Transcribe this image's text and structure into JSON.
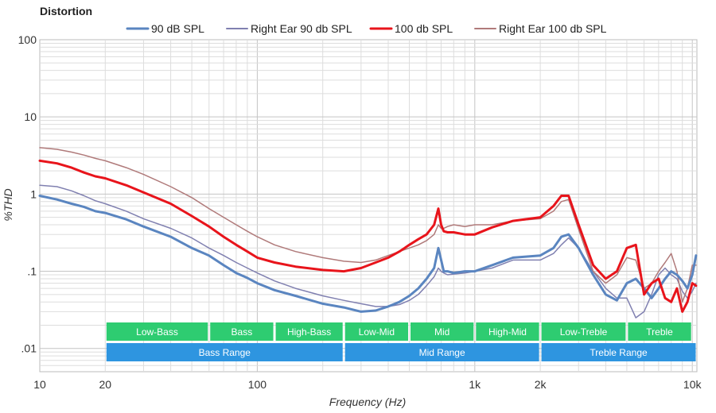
{
  "chart_data": {
    "type": "line",
    "title": "Distortion",
    "xlabel": "Frequency (Hz)",
    "ylabel": "%THD",
    "xscale": "log",
    "yscale": "log",
    "xlim": [
      10,
      10500
    ],
    "ylim": [
      0.005,
      100
    ],
    "grid": true,
    "legend_position": "top",
    "x_ticks": [
      {
        "value": 10,
        "label": "10"
      },
      {
        "value": 20,
        "label": "20"
      },
      {
        "value": 100,
        "label": "100"
      },
      {
        "value": 1000,
        "label": "1k"
      },
      {
        "value": 2000,
        "label": "2k"
      },
      {
        "value": 10000,
        "label": "10k"
      }
    ],
    "y_ticks": [
      {
        "value": 100,
        "label": "100"
      },
      {
        "value": 10,
        "label": "10"
      },
      {
        "value": 1,
        "label": "1"
      },
      {
        "value": 0.1,
        "label": ".1"
      },
      {
        "value": 0.01,
        "label": ".01"
      }
    ],
    "series": [
      {
        "name": "90 dB SPL",
        "color": "#5a85c0",
        "width": 3,
        "x": [
          10,
          12,
          14,
          16,
          18,
          20,
          25,
          30,
          40,
          50,
          60,
          70,
          80,
          90,
          100,
          120,
          150,
          200,
          250,
          300,
          350,
          400,
          450,
          500,
          550,
          600,
          650,
          680,
          700,
          720,
          750,
          800,
          900,
          1000,
          1200,
          1500,
          2000,
          2300,
          2500,
          2700,
          3000,
          3500,
          4000,
          4500,
          5000,
          5500,
          6000,
          6500,
          7000,
          7500,
          8000,
          8500,
          9000,
          9500,
          10000,
          10400
        ],
        "y": [
          0.95,
          0.85,
          0.75,
          0.68,
          0.6,
          0.57,
          0.47,
          0.38,
          0.28,
          0.2,
          0.16,
          0.12,
          0.095,
          0.082,
          0.07,
          0.057,
          0.048,
          0.038,
          0.034,
          0.03,
          0.031,
          0.035,
          0.04,
          0.048,
          0.06,
          0.08,
          0.11,
          0.2,
          0.14,
          0.1,
          0.1,
          0.095,
          0.1,
          0.1,
          0.12,
          0.15,
          0.16,
          0.2,
          0.28,
          0.3,
          0.2,
          0.09,
          0.05,
          0.042,
          0.07,
          0.08,
          0.06,
          0.045,
          0.06,
          0.08,
          0.1,
          0.09,
          0.075,
          0.06,
          0.09,
          0.16
        ]
      },
      {
        "name": "Right Ear 90 db SPL",
        "color": "#8080b0",
        "width": 1.5,
        "x": [
          10,
          12,
          14,
          16,
          18,
          20,
          25,
          30,
          40,
          50,
          60,
          70,
          80,
          90,
          100,
          120,
          150,
          200,
          250,
          300,
          350,
          400,
          450,
          500,
          550,
          600,
          650,
          680,
          700,
          720,
          750,
          800,
          900,
          1000,
          1200,
          1500,
          2000,
          2300,
          2500,
          2700,
          3000,
          3500,
          4000,
          4500,
          5000,
          5500,
          6000,
          6500,
          7000,
          7500,
          8000,
          8500,
          9000,
          9500,
          10000,
          10400
        ],
        "y": [
          1.3,
          1.25,
          1.1,
          0.95,
          0.82,
          0.75,
          0.6,
          0.48,
          0.36,
          0.27,
          0.2,
          0.16,
          0.13,
          0.11,
          0.095,
          0.075,
          0.06,
          0.048,
          0.042,
          0.038,
          0.035,
          0.035,
          0.037,
          0.042,
          0.05,
          0.065,
          0.085,
          0.11,
          0.1,
          0.095,
          0.09,
          0.092,
          0.095,
          0.1,
          0.11,
          0.14,
          0.14,
          0.17,
          0.22,
          0.27,
          0.2,
          0.1,
          0.06,
          0.045,
          0.045,
          0.025,
          0.03,
          0.05,
          0.09,
          0.11,
          0.09,
          0.08,
          0.055,
          0.045,
          0.055,
          0.07
        ]
      },
      {
        "name": "100 db SPL",
        "color": "#e8141b",
        "width": 3,
        "x": [
          10,
          12,
          14,
          16,
          18,
          20,
          25,
          30,
          40,
          50,
          60,
          70,
          80,
          90,
          100,
          120,
          150,
          200,
          250,
          300,
          350,
          400,
          450,
          500,
          550,
          600,
          650,
          680,
          700,
          720,
          750,
          800,
          900,
          1000,
          1200,
          1500,
          2000,
          2300,
          2500,
          2700,
          3000,
          3500,
          4000,
          4500,
          5000,
          5500,
          6000,
          6500,
          7000,
          7500,
          8000,
          8500,
          9000,
          9500,
          10000,
          10400
        ],
        "y": [
          2.7,
          2.5,
          2.2,
          1.9,
          1.7,
          1.6,
          1.3,
          1.05,
          0.75,
          0.52,
          0.38,
          0.28,
          0.22,
          0.18,
          0.15,
          0.13,
          0.115,
          0.104,
          0.1,
          0.11,
          0.13,
          0.15,
          0.18,
          0.22,
          0.26,
          0.3,
          0.4,
          0.65,
          0.4,
          0.33,
          0.32,
          0.32,
          0.3,
          0.3,
          0.37,
          0.45,
          0.5,
          0.7,
          0.95,
          0.95,
          0.4,
          0.12,
          0.08,
          0.1,
          0.2,
          0.22,
          0.05,
          0.07,
          0.08,
          0.045,
          0.04,
          0.06,
          0.03,
          0.04,
          0.07,
          0.065
        ]
      },
      {
        "name": "Right Ear 100 db SPL",
        "color": "#b07a7a",
        "width": 1.5,
        "x": [
          10,
          12,
          14,
          16,
          18,
          20,
          25,
          30,
          40,
          50,
          60,
          70,
          80,
          90,
          100,
          120,
          150,
          200,
          250,
          300,
          350,
          400,
          450,
          500,
          550,
          600,
          650,
          680,
          700,
          720,
          750,
          800,
          900,
          1000,
          1200,
          1500,
          2000,
          2300,
          2500,
          2700,
          3000,
          3500,
          4000,
          4500,
          5000,
          5500,
          6000,
          6500,
          7000,
          7500,
          8000,
          8500,
          9000,
          9500,
          10000,
          10400
        ],
        "y": [
          4.0,
          3.8,
          3.5,
          3.2,
          2.9,
          2.7,
          2.2,
          1.8,
          1.25,
          0.9,
          0.65,
          0.5,
          0.4,
          0.33,
          0.28,
          0.22,
          0.18,
          0.15,
          0.135,
          0.13,
          0.14,
          0.16,
          0.18,
          0.2,
          0.22,
          0.25,
          0.3,
          0.4,
          0.36,
          0.36,
          0.38,
          0.4,
          0.38,
          0.4,
          0.4,
          0.45,
          0.48,
          0.6,
          0.8,
          0.85,
          0.35,
          0.1,
          0.07,
          0.09,
          0.15,
          0.14,
          0.06,
          0.07,
          0.1,
          0.13,
          0.17,
          0.1,
          0.04,
          0.06,
          0.12,
          0.12
        ]
      }
    ],
    "band_rows": [
      [
        {
          "label": "Low-Bass",
          "from": 20,
          "to": 60
        },
        {
          "label": "Bass",
          "from": 60,
          "to": 120
        },
        {
          "label": "High-Bass",
          "from": 120,
          "to": 250
        },
        {
          "label": "Low-Mid",
          "from": 250,
          "to": 500
        },
        {
          "label": "Mid",
          "from": 500,
          "to": 1000
        },
        {
          "label": "High-Mid",
          "from": 1000,
          "to": 2000
        },
        {
          "label": "Low-Treble",
          "from": 2000,
          "to": 5000
        },
        {
          "label": "Treble",
          "from": 5000,
          "to": 10000
        }
      ],
      [
        {
          "label": "Bass Range",
          "from": 20,
          "to": 250
        },
        {
          "label": "Mid Range",
          "from": 250,
          "to": 2000
        },
        {
          "label": "Treble Range",
          "from": 2000,
          "to": 10500
        }
      ]
    ],
    "band_colors": [
      "#2ecc71",
      "#2e95e0"
    ]
  }
}
